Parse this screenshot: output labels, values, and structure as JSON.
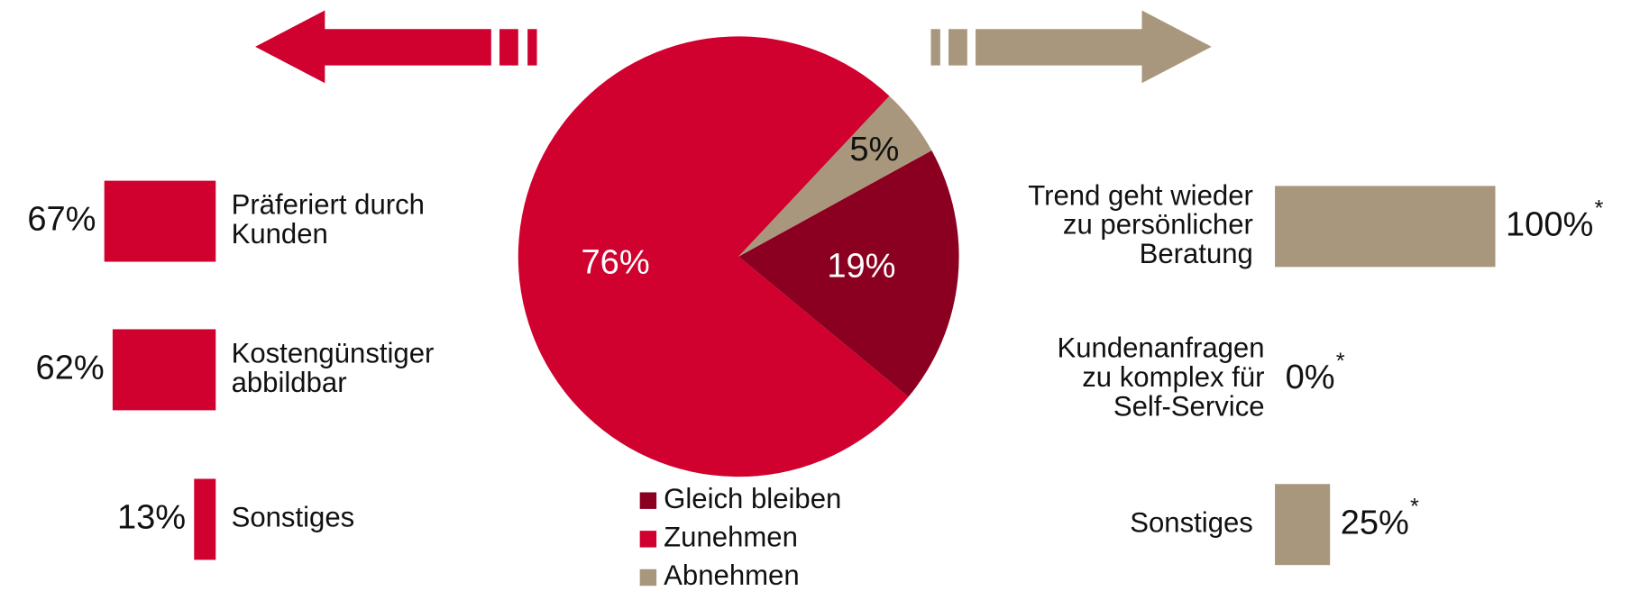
{
  "chart_data": [
    {
      "type": "pie",
      "categories": [
        "Gleich bleiben",
        "Zunehmen",
        "Abnehmen"
      ],
      "values": [
        19,
        76,
        5
      ],
      "value_labels": [
        "19%",
        "76%",
        "5%"
      ],
      "colors": [
        "#8b0020",
        "#d0002f",
        "#a8977c"
      ],
      "legend": "bottom"
    },
    {
      "type": "hbar",
      "direction": "left",
      "categories": [
        [
          "Präferiert durch",
          "Kunden"
        ],
        [
          "Kostengünstiger",
          "abbildbar"
        ],
        [
          "Sonstiges"
        ]
      ],
      "values": [
        67,
        62,
        13
      ],
      "value_labels": [
        "67%",
        "62%",
        "13%"
      ],
      "color": "#d0002f"
    },
    {
      "type": "hbar",
      "direction": "right",
      "categories": [
        [
          "Trend geht wieder",
          "zu persönlicher",
          "Beratung"
        ],
        [
          "Kundenanfragen",
          "zu komplex für",
          "Self-Service"
        ],
        [
          "Sonstiges"
        ]
      ],
      "values": [
        100,
        0,
        25
      ],
      "value_labels": [
        "100%",
        "0%",
        "25%"
      ],
      "annotation": "*",
      "color": "#a8977c"
    }
  ]
}
